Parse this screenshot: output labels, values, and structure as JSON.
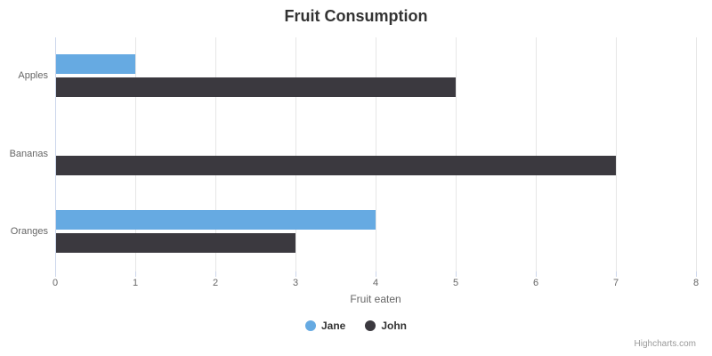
{
  "chart": {
    "credits": "Highcharts.com"
  },
  "chart_data": {
    "type": "bar",
    "title": "Fruit Consumption",
    "categories": [
      "Apples",
      "Bananas",
      "Oranges"
    ],
    "series": [
      {
        "name": "Jane",
        "color": "#66aae2",
        "values": [
          1,
          0,
          4
        ]
      },
      {
        "name": "John",
        "color": "#3b393f",
        "values": [
          5,
          7,
          3
        ]
      }
    ],
    "xlabel": "Fruit eaten",
    "value_axis": {
      "min": 0,
      "max": 8,
      "tick_interval": 1,
      "ticks": [
        0,
        1,
        2,
        3,
        4,
        5,
        6,
        7,
        8
      ]
    },
    "orientation": "horizontal",
    "grid": true,
    "legend_position": "bottom"
  }
}
